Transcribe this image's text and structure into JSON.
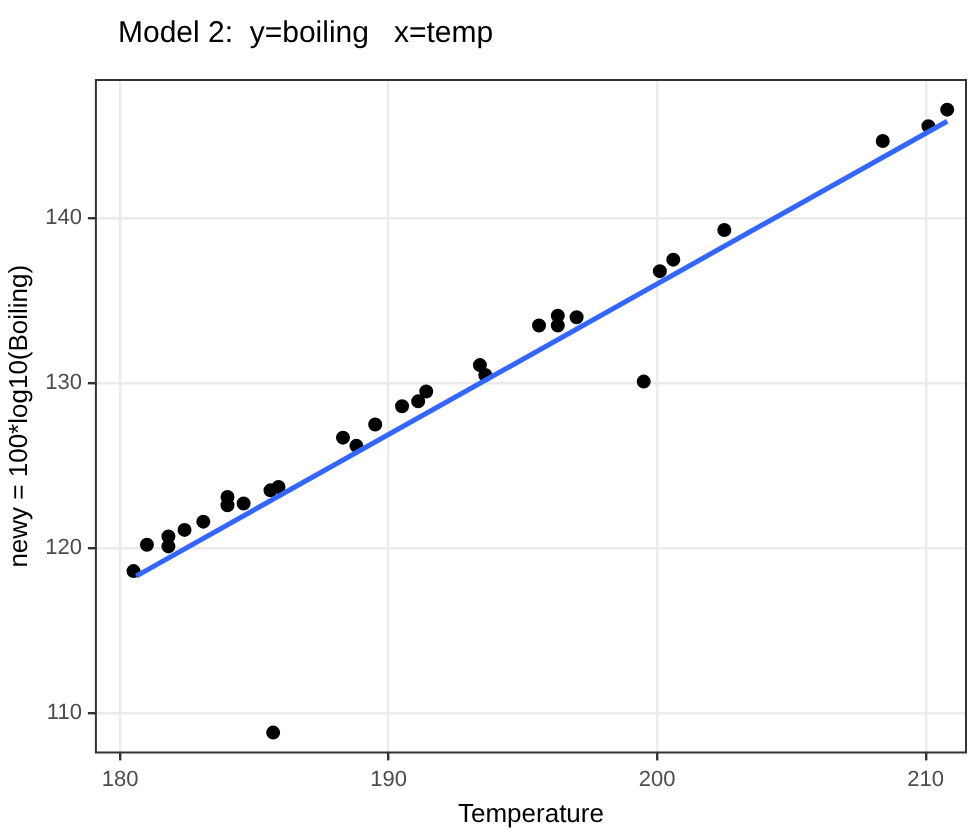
{
  "chart_data": {
    "type": "scatter",
    "title": "Model 2:  y=boiling   x=temp",
    "xlabel": "Temperature",
    "ylabel": "newy = 100*log10(Boiling)",
    "xlim": [
      179.1,
      211.5
    ],
    "ylim": [
      107.6,
      148.4
    ],
    "xticks": [
      180,
      190,
      200,
      210
    ],
    "yticks": [
      110,
      120,
      130,
      140
    ],
    "grid": true,
    "legend": false,
    "marker": "circle",
    "series": [
      {
        "color": "#000000",
        "x": [
          180.5,
          181.0,
          181.8,
          181.8,
          182.4,
          183.1,
          184.0,
          184.0,
          184.6,
          185.6,
          185.9,
          185.7,
          188.3,
          188.8,
          189.5,
          190.5,
          191.1,
          191.4,
          193.4,
          193.6,
          195.6,
          196.3,
          196.3,
          197.0,
          199.5,
          200.1,
          200.6,
          202.5,
          208.4,
          210.1,
          210.8
        ],
        "values": [
          118.6,
          120.2,
          120.1,
          120.7,
          121.1,
          121.6,
          122.6,
          123.1,
          122.7,
          123.5,
          123.7,
          108.8,
          126.7,
          126.2,
          127.5,
          128.6,
          128.9,
          129.5,
          131.1,
          130.5,
          133.5,
          133.5,
          134.1,
          134.0,
          130.1,
          136.8,
          137.5,
          139.3,
          144.7,
          145.6,
          146.6
        ]
      },
      {
        "type": "line",
        "color": "#3366ff",
        "marker": "none",
        "line_style": "solid",
        "x": [
          180.6,
          210.8
        ],
        "values": [
          118.3,
          145.9
        ]
      }
    ]
  }
}
